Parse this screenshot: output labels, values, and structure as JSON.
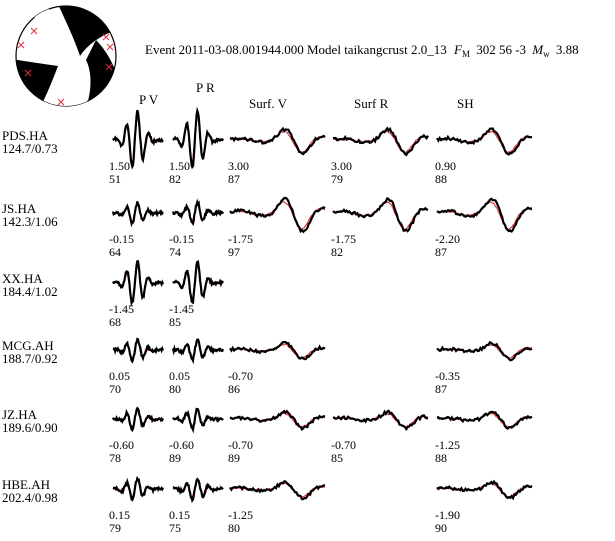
{
  "title": {
    "prefix": "Event 2011-03-08.001944.000 Model taikangcrust 2.0_13",
    "fm_symbol": "F",
    "fm_sub": "M",
    "fm_values": "302 56 -3",
    "mw_symbol": "M",
    "mw_sub": "w",
    "mw_value": "3.88"
  },
  "colors": {
    "observed": "#000000",
    "synthetic": "#e0303a",
    "beachball_fill": "#000000",
    "marker": "#e0303a"
  },
  "columns": [
    "P V",
    "P R",
    "Surf. V",
    "Surf R",
    "SH"
  ],
  "chart_data": {
    "type": "waveform-grid",
    "series": [
      {
        "name": "observed",
        "color": "#000000"
      },
      {
        "name": "synthetic",
        "color": "#e0303a"
      }
    ],
    "stations": [
      {
        "name": "PDS.HA",
        "dist": "124.7/0.73",
        "traces": [
          {
            "col": 0,
            "shift": "1.50",
            "cc": "51"
          },
          {
            "col": 1,
            "shift": "1.50",
            "cc": "82"
          },
          {
            "col": 2,
            "shift": "3.00",
            "cc": "87"
          },
          {
            "col": 3,
            "shift": "3.00",
            "cc": "79"
          },
          {
            "col": 4,
            "shift": "0.90",
            "cc": "88"
          }
        ]
      },
      {
        "name": "JS.HA",
        "dist": "142.3/1.06",
        "traces": [
          {
            "col": 0,
            "shift": "-0.15",
            "cc": "64"
          },
          {
            "col": 1,
            "shift": "-0.15",
            "cc": "74"
          },
          {
            "col": 2,
            "shift": "-1.75",
            "cc": "97"
          },
          {
            "col": 3,
            "shift": "-1.75",
            "cc": "82"
          },
          {
            "col": 4,
            "shift": "-2.20",
            "cc": "87"
          }
        ]
      },
      {
        "name": "XX.HA",
        "dist": "184.4/1.02",
        "traces": [
          {
            "col": 0,
            "shift": "-1.45",
            "cc": "68"
          },
          {
            "col": 1,
            "shift": "-1.45",
            "cc": "85"
          }
        ]
      },
      {
        "name": "MCG.AH",
        "dist": "188.7/0.92",
        "traces": [
          {
            "col": 0,
            "shift": "0.05",
            "cc": "70"
          },
          {
            "col": 1,
            "shift": "0.05",
            "cc": "80"
          },
          {
            "col": 2,
            "shift": "-0.70",
            "cc": "86"
          },
          {
            "col": 4,
            "shift": "-0.35",
            "cc": "87"
          }
        ]
      },
      {
        "name": "JZ.HA",
        "dist": "189.6/0.90",
        "traces": [
          {
            "col": 0,
            "shift": "-0.60",
            "cc": "78"
          },
          {
            "col": 1,
            "shift": "-0.60",
            "cc": "89"
          },
          {
            "col": 2,
            "shift": "-0.70",
            "cc": "89"
          },
          {
            "col": 3,
            "shift": "-0.70",
            "cc": "85"
          },
          {
            "col": 4,
            "shift": "-1.25",
            "cc": "88"
          }
        ]
      },
      {
        "name": "HBE.AH",
        "dist": "202.4/0.98",
        "traces": [
          {
            "col": 0,
            "shift": "0.15",
            "cc": "79"
          },
          {
            "col": 1,
            "shift": "0.15",
            "cc": "75"
          },
          {
            "col": 2,
            "shift": "-1.25",
            "cc": "80"
          },
          {
            "col": 4,
            "shift": "-1.90",
            "cc": "90"
          }
        ]
      }
    ]
  }
}
